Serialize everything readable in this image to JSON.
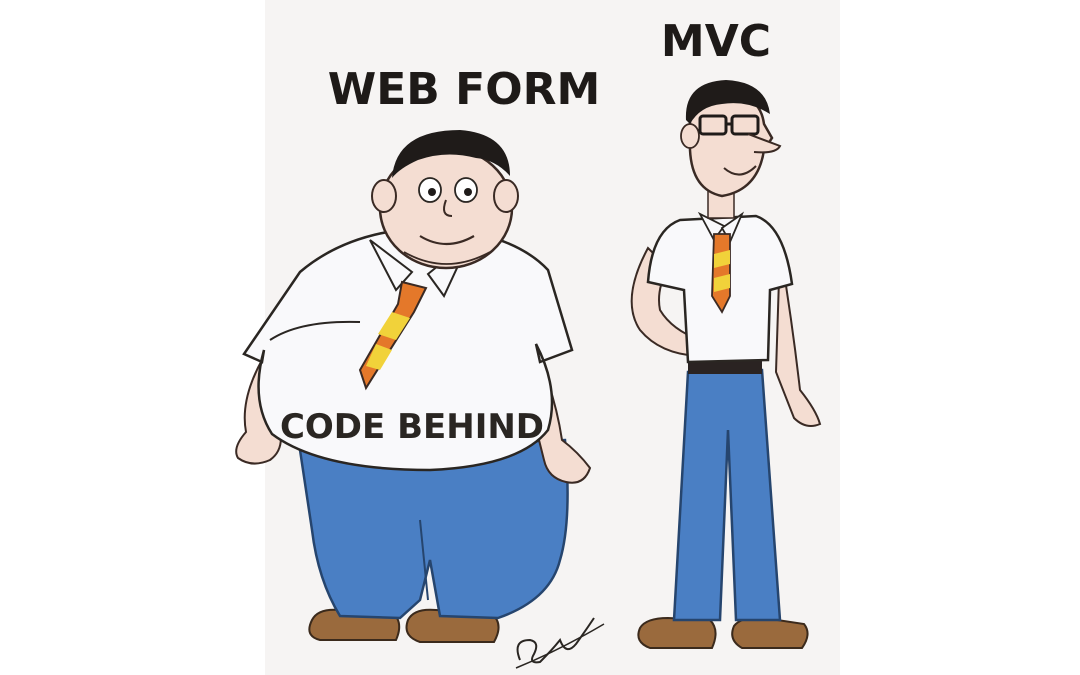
{
  "labels": {
    "left_title": "WEB FORM",
    "right_title": "MVC",
    "belly_text": "CODE BEHIND"
  },
  "figures": {
    "left": "chubby-man-webform",
    "right": "slim-man-mvc"
  },
  "colors": {
    "paper": "#f7f5f4",
    "shirt": "#f9f9fb",
    "jeans": "#4a7fc4",
    "hair": "#1f1b19",
    "skin": "#f4ddd2",
    "shoes": "#9a6a3d",
    "tie_orange": "#e4782a",
    "tie_yellow": "#f1d23a",
    "belt": "#2a2322"
  },
  "signature": "artist-signature"
}
